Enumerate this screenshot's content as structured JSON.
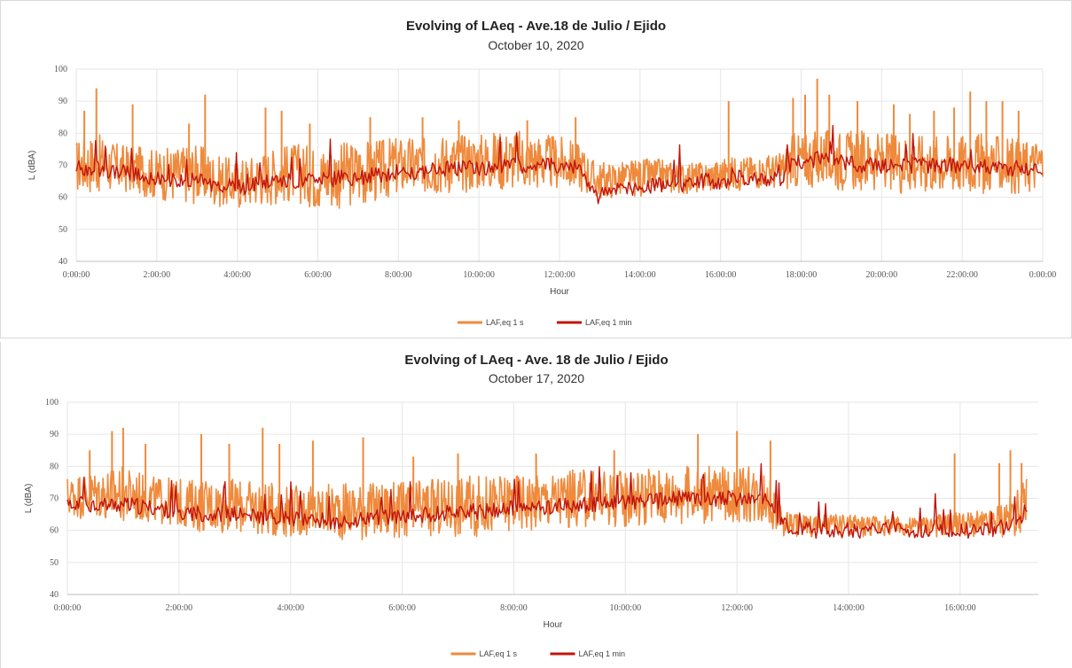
{
  "colors": {
    "series_1s": "#ef8a3c",
    "series_1min": "#c0140c",
    "grid": "#e6e6e6"
  },
  "chart_data": [
    {
      "type": "line",
      "title": "Evolving of LAeq - Ave.18 de Julio / Ejido",
      "subtitle": "October 10, 2020",
      "xlabel": "Hour",
      "ylabel": "L (dBA)",
      "ylim": [
        40,
        100
      ],
      "yticks": [
        "40",
        "50",
        "60",
        "70",
        "80",
        "90",
        "100"
      ],
      "xticks": [
        "0:00:00",
        "2:00:00",
        "4:00:00",
        "6:00:00",
        "8:00:00",
        "10:00:00",
        "12:00:00",
        "14:00:00",
        "16:00:00",
        "18:00:00",
        "20:00:00",
        "22:00:00",
        "0:00:00"
      ],
      "xrange_hours": [
        0,
        24
      ],
      "legend_position": "bottom",
      "series": [
        {
          "name": "LAF,eq 1 s",
          "x": [
            0,
            0.5,
            1,
            1.5,
            2,
            2.5,
            3,
            3.5,
            4,
            4.5,
            5,
            5.5,
            6,
            6.5,
            7,
            7.5,
            8,
            8.5,
            9,
            9.5,
            10,
            10.5,
            11,
            11.5,
            12,
            12.5,
            12.9,
            13.5,
            14,
            14.5,
            15,
            15.5,
            16,
            16.5,
            17,
            17.5,
            17.8,
            18.5,
            19,
            19.5,
            20,
            20.5,
            21,
            21.5,
            22,
            22.5,
            23,
            23.5,
            24
          ],
          "low": [
            61,
            61,
            61,
            61,
            59,
            58,
            58,
            57,
            56,
            57,
            58,
            58,
            56,
            56,
            57,
            58,
            60,
            60,
            61,
            61,
            62,
            62,
            62,
            62,
            62,
            62,
            59,
            60,
            60,
            61,
            61,
            61,
            62,
            62,
            63,
            62,
            62,
            63,
            62,
            62,
            62,
            61,
            61,
            61,
            61,
            61,
            61,
            61,
            62
          ],
          "high": [
            78,
            80,
            77,
            76,
            75,
            76,
            77,
            73,
            72,
            74,
            76,
            77,
            76,
            77,
            78,
            78,
            79,
            79,
            80,
            80,
            80,
            81,
            81,
            80,
            79,
            77,
            71,
            71,
            72,
            72,
            71,
            71,
            72,
            73,
            73,
            74,
            80,
            81,
            81,
            81,
            80,
            80,
            80,
            80,
            80,
            80,
            79,
            78,
            79
          ],
          "peaks": [
            [
              0.2,
              87
            ],
            [
              0.5,
              94
            ],
            [
              1.4,
              89
            ],
            [
              2.8,
              83
            ],
            [
              3.2,
              92
            ],
            [
              4.7,
              88
            ],
            [
              5.1,
              87
            ],
            [
              5.8,
              83
            ],
            [
              7.3,
              85
            ],
            [
              8.6,
              85
            ],
            [
              9.5,
              84
            ],
            [
              11.2,
              84
            ],
            [
              12.4,
              85
            ],
            [
              16.2,
              90
            ],
            [
              17.8,
              91
            ],
            [
              18.1,
              92
            ],
            [
              18.4,
              97
            ],
            [
              18.7,
              92
            ],
            [
              19.4,
              90
            ],
            [
              20.3,
              89
            ],
            [
              20.7,
              86
            ],
            [
              21.3,
              87
            ],
            [
              21.8,
              88
            ],
            [
              22.2,
              93
            ],
            [
              22.6,
              90
            ],
            [
              23.0,
              90
            ],
            [
              23.4,
              87
            ]
          ]
        },
        {
          "name": "LAF,eq 1 min",
          "x": [
            0,
            0.5,
            1,
            1.5,
            2,
            2.5,
            3,
            3.5,
            4,
            4.5,
            5,
            5.5,
            6,
            6.5,
            7,
            7.5,
            8,
            8.5,
            9,
            9.5,
            10,
            10.5,
            11,
            11.5,
            12,
            12.5,
            12.9,
            13.5,
            14,
            14.5,
            15,
            15.5,
            16,
            16.5,
            17,
            17.5,
            17.8,
            18.5,
            19,
            19.5,
            20,
            20.5,
            21,
            21.5,
            22,
            22.5,
            23,
            23.5,
            24
          ],
          "values": [
            69,
            69,
            68,
            67,
            66,
            65,
            65,
            64,
            63,
            64,
            65,
            65,
            65,
            66,
            66,
            67,
            68,
            68,
            69,
            69,
            69,
            70,
            70,
            70,
            70,
            69,
            60,
            63,
            63,
            64,
            64,
            65,
            65,
            66,
            66,
            66,
            71,
            72,
            71,
            70,
            70,
            70,
            70,
            70,
            70,
            70,
            69,
            69,
            69
          ]
        }
      ]
    },
    {
      "type": "line",
      "title": "Evolving of LAeq - Ave. 18 de Julio / Ejido",
      "subtitle": "October 17, 2020",
      "xlabel": "Hour",
      "ylabel": "L (dBA)",
      "ylim": [
        40,
        100
      ],
      "yticks": [
        "40",
        "50",
        "60",
        "70",
        "80",
        "90",
        "100"
      ],
      "xticks": [
        "0:00:00",
        "2:00:00",
        "4:00:00",
        "6:00:00",
        "8:00:00",
        "10:00:00",
        "12:00:00",
        "14:00:00",
        "16:00:00"
      ],
      "xrange_hours": [
        0,
        17.4
      ],
      "legend_position": "bottom",
      "series": [
        {
          "name": "LAF,eq 1 s",
          "x": [
            0,
            0.5,
            1,
            1.5,
            2,
            2.5,
            3,
            3.5,
            4,
            4.5,
            5,
            5.5,
            6,
            6.5,
            7,
            7.5,
            8,
            8.5,
            9,
            9.5,
            10,
            10.5,
            11,
            11.5,
            12,
            12.5,
            12.8,
            13.3,
            14,
            14.5,
            15,
            15.5,
            16,
            16.5,
            17,
            17.2
          ],
          "low": [
            64,
            63,
            62,
            62,
            61,
            59,
            59,
            58,
            58,
            57,
            57,
            57,
            57,
            57,
            58,
            58,
            59,
            60,
            60,
            61,
            61,
            61,
            62,
            62,
            62,
            62,
            58,
            58,
            58,
            58,
            58,
            58,
            58,
            57,
            58,
            61
          ],
          "high": [
            77,
            79,
            80,
            77,
            76,
            76,
            76,
            75,
            74,
            74,
            75,
            75,
            75,
            76,
            77,
            77,
            78,
            78,
            79,
            79,
            79,
            80,
            80,
            80,
            80,
            80,
            67,
            65,
            65,
            65,
            64,
            65,
            66,
            66,
            72,
            77
          ],
          "peaks": [
            [
              0.4,
              85
            ],
            [
              0.8,
              91
            ],
            [
              1.0,
              92
            ],
            [
              1.4,
              87
            ],
            [
              2.4,
              90
            ],
            [
              2.9,
              87
            ],
            [
              3.5,
              92
            ],
            [
              3.8,
              87
            ],
            [
              4.4,
              88
            ],
            [
              5.3,
              89
            ],
            [
              6.2,
              83
            ],
            [
              7.0,
              84
            ],
            [
              8.4,
              84
            ],
            [
              9.8,
              85
            ],
            [
              11.3,
              90
            ],
            [
              12.0,
              91
            ],
            [
              12.6,
              88
            ],
            [
              15.9,
              84
            ],
            [
              16.7,
              81
            ],
            [
              16.9,
              85
            ],
            [
              17.1,
              81
            ]
          ]
        },
        {
          "name": "LAF,eq 1 min",
          "x": [
            0,
            0.5,
            1,
            1.5,
            2,
            2.5,
            3,
            3.5,
            4,
            4.5,
            5,
            5.5,
            6,
            6.5,
            7,
            7.5,
            8,
            8.5,
            9,
            9.5,
            10,
            10.5,
            11,
            11.5,
            12,
            12.5,
            12.8,
            13.3,
            14,
            14.5,
            15,
            15.5,
            16,
            16.5,
            17,
            17.2
          ],
          "values": [
            69,
            68,
            68,
            67,
            66,
            65,
            65,
            64,
            64,
            63,
            63,
            64,
            64,
            65,
            66,
            66,
            67,
            67,
            68,
            68,
            69,
            69,
            70,
            70,
            70,
            70,
            62,
            60,
            60,
            60,
            60,
            60,
            60,
            60,
            62,
            67
          ]
        }
      ]
    }
  ]
}
